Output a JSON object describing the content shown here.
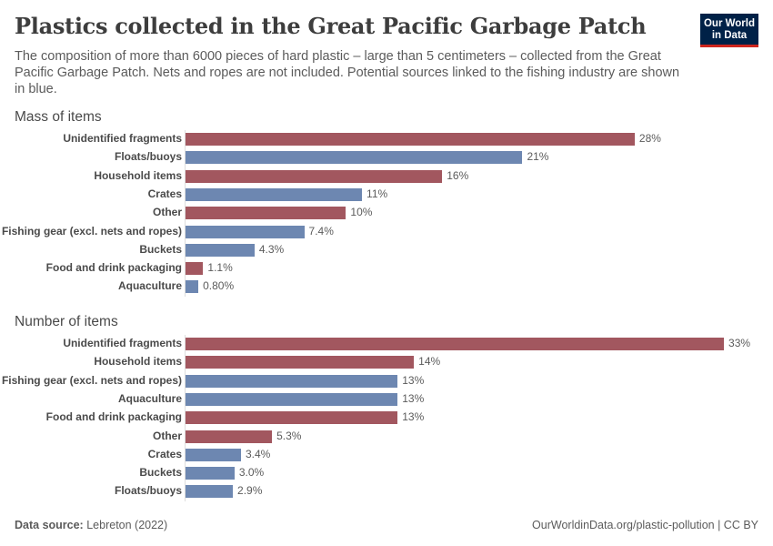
{
  "header": {
    "title": "Plastics collected in the Great Pacific Garbage Patch",
    "subtitle": "The composition of more than 6000 pieces of hard plastic – large than 5 centimeters – collected from the Great Pacific Garbage Patch. Nets and ropes are not included. Potential sources linked to the fishing industry are shown in blue.",
    "logo_line1": "Our World",
    "logo_line2": "in Data"
  },
  "colors": {
    "red": "#a2575f",
    "blue": "#6d87b1",
    "logo_bg": "#002147",
    "logo_accent": "#ce261e"
  },
  "chart_data": [
    {
      "type": "bar",
      "orientation": "horizontal",
      "title": "Mass of items",
      "unit": "%",
      "categories": [
        "Unidentified fragments",
        "Floats/buoys",
        "Household items",
        "Crates",
        "Other",
        "Fishing gear (excl. nets and ropes)",
        "Buckets",
        "Food and drink packaging",
        "Aquaculture"
      ],
      "values": [
        28,
        21,
        16,
        11,
        10,
        7.4,
        4.3,
        1.1,
        0.8
      ],
      "labels": [
        "28%",
        "21%",
        "16%",
        "11%",
        "10%",
        "7.4%",
        "4.3%",
        "1.1%",
        "0.80%"
      ],
      "colors": [
        "red",
        "blue",
        "red",
        "blue",
        "red",
        "blue",
        "blue",
        "red",
        "blue"
      ],
      "grid": false
    },
    {
      "type": "bar",
      "orientation": "horizontal",
      "title": "Number of items",
      "unit": "%",
      "categories": [
        "Unidentified fragments",
        "Household items",
        "Fishing gear (excl. nets and ropes)",
        "Aquaculture",
        "Food and drink packaging",
        "Other",
        "Crates",
        "Buckets",
        "Floats/buoys"
      ],
      "values": [
        33,
        14,
        13,
        13,
        13,
        5.3,
        3.4,
        3.0,
        2.9
      ],
      "labels": [
        "33%",
        "14%",
        "13%",
        "13%",
        "13%",
        "5.3%",
        "3.4%",
        "3.0%",
        "2.9%"
      ],
      "colors": [
        "red",
        "red",
        "blue",
        "blue",
        "red",
        "red",
        "blue",
        "blue",
        "blue"
      ],
      "grid": false
    }
  ],
  "legend_note": "Blue = potential sources linked to the fishing industry",
  "footer": {
    "source_label": "Data source:",
    "source_value": "Lebreton (2022)",
    "url": "OurWorldinData.org/plastic-pollution | CC BY"
  }
}
